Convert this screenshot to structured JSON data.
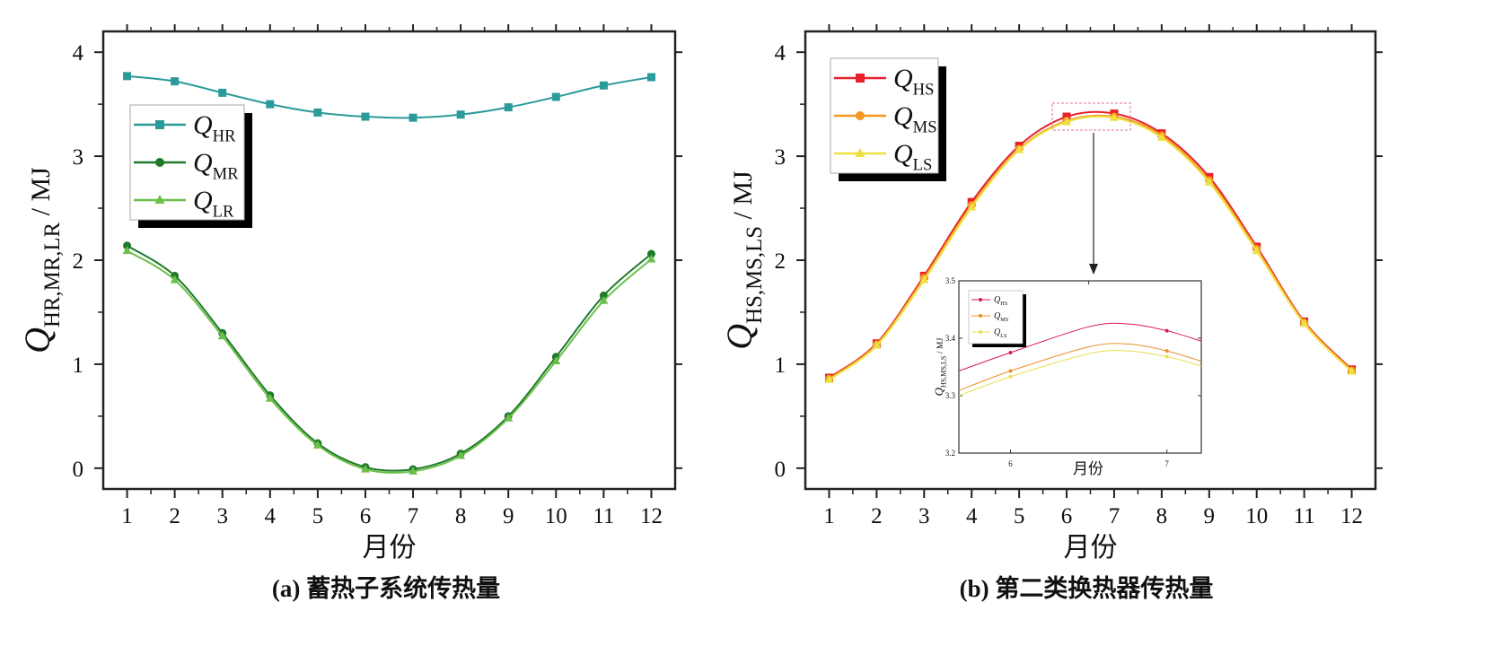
{
  "chart_data": [
    {
      "id": "a",
      "type": "line",
      "caption": "(a) 蓄热子系统传热量",
      "xlabel": "月份",
      "ylabel": {
        "symbol": "Q",
        "subscript": "HR,MR,LR",
        "unit": " / MJ"
      },
      "x": [
        1,
        2,
        3,
        4,
        5,
        6,
        7,
        8,
        9,
        10,
        11,
        12
      ],
      "xlim": [
        0.5,
        12.5
      ],
      "ylim": [
        -0.2,
        4.2
      ],
      "xticks": [
        1,
        2,
        3,
        4,
        5,
        6,
        7,
        8,
        9,
        10,
        11,
        12
      ],
      "yticks": [
        0,
        1,
        2,
        3,
        4
      ],
      "grid": false,
      "legend_position": "upper-left",
      "series": [
        {
          "name": {
            "symbol": "Q",
            "subscript": "HR"
          },
          "marker": "square",
          "color": "#2a9a9a",
          "values": [
            3.77,
            3.72,
            3.61,
            3.5,
            3.42,
            3.38,
            3.37,
            3.4,
            3.47,
            3.57,
            3.68,
            3.76
          ]
        },
        {
          "name": {
            "symbol": "Q",
            "subscript": "MR"
          },
          "marker": "circle",
          "color": "#1f7a2a",
          "values": [
            2.14,
            1.85,
            1.3,
            0.7,
            0.24,
            0.01,
            -0.01,
            0.14,
            0.5,
            1.07,
            1.66,
            2.06
          ]
        },
        {
          "name": {
            "symbol": "Q",
            "subscript": "LR"
          },
          "marker": "triangle",
          "color": "#6cc04a",
          "values": [
            2.09,
            1.81,
            1.27,
            0.67,
            0.22,
            -0.01,
            -0.03,
            0.12,
            0.48,
            1.03,
            1.61,
            2.01
          ]
        }
      ]
    },
    {
      "id": "b",
      "type": "line",
      "caption": "(b) 第二类换热器传热量",
      "xlabel": "月份",
      "ylabel": {
        "symbol": "Q",
        "subscript": "HS,MS,LS",
        "unit": " / MJ"
      },
      "x": [
        1,
        2,
        3,
        4,
        5,
        6,
        7,
        8,
        9,
        10,
        11,
        12
      ],
      "xlim": [
        0.5,
        12.5
      ],
      "ylim": [
        -0.2,
        4.2
      ],
      "xticks": [
        1,
        2,
        3,
        4,
        5,
        6,
        7,
        8,
        9,
        10,
        11,
        12
      ],
      "yticks": [
        0,
        1,
        2,
        3,
        4
      ],
      "grid": false,
      "legend_position": "upper-left",
      "series": [
        {
          "name": {
            "symbol": "Q",
            "subscript": "HS"
          },
          "marker": "square",
          "color": "#e8202a",
          "values": [
            0.87,
            1.2,
            1.85,
            2.56,
            3.1,
            3.38,
            3.41,
            3.22,
            2.8,
            2.13,
            1.41,
            0.95
          ]
        },
        {
          "name": {
            "symbol": "Q",
            "subscript": "MS"
          },
          "marker": "circle",
          "color": "#f5961e",
          "values": [
            0.86,
            1.19,
            1.83,
            2.53,
            3.07,
            3.34,
            3.38,
            3.2,
            2.77,
            2.11,
            1.4,
            0.94
          ]
        },
        {
          "name": {
            "symbol": "Q",
            "subscript": "LS"
          },
          "marker": "triangle",
          "color": "#ede040",
          "values": [
            0.85,
            1.18,
            1.81,
            2.51,
            3.06,
            3.33,
            3.37,
            3.18,
            2.75,
            2.09,
            1.39,
            0.93
          ]
        }
      ],
      "inset": {
        "type": "line",
        "xlabel": "月份",
        "ylabel": {
          "symbol": "Q",
          "subscript": "HS,MS,LS",
          "unit": " / MJ"
        },
        "xlim": [
          5.67,
          7.22
        ],
        "ylim": [
          3.2,
          3.5
        ],
        "xticks": [
          6,
          7
        ],
        "yticks": [
          3.2,
          3.3,
          3.4,
          3.5
        ],
        "ytick_labels": [
          "3.2",
          "3.3",
          "3.4",
          "3.5"
        ],
        "marker_x": [
          6,
          7
        ],
        "x": [
          5.67,
          6,
          6.5,
          6.75,
          7,
          7.22
        ],
        "series": [
          {
            "name": {
              "symbol": "Q",
              "subscript": "HS"
            },
            "color": "#d81b50",
            "values": [
              3.343,
              3.375,
              3.42,
              3.425,
              3.413,
              3.395
            ],
            "marker_values": [
              3.375,
              3.413
            ]
          },
          {
            "name": {
              "symbol": "Q",
              "subscript": "MS"
            },
            "color": "#e8902a",
            "values": [
              3.309,
              3.343,
              3.385,
              3.39,
              3.378,
              3.36
            ],
            "marker_values": [
              3.343,
              3.378
            ]
          },
          {
            "name": {
              "symbol": "Q",
              "subscript": "LS"
            },
            "color": "#e8e050",
            "values": [
              3.3,
              3.333,
              3.373,
              3.378,
              3.368,
              3.352
            ],
            "marker_values": [
              3.333,
              3.368
            ]
          }
        ]
      }
    }
  ]
}
